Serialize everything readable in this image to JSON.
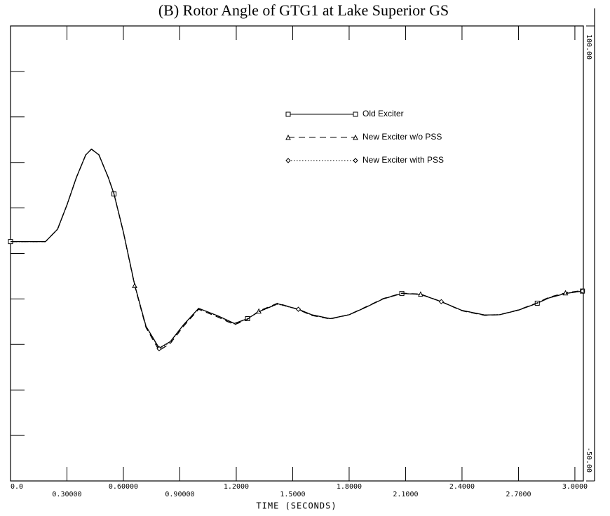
{
  "chart_data": {
    "type": "line",
    "title": "(B) Rotor Angle of GTG1 at Lake Superior GS",
    "xlabel": "TIME (SECONDS)",
    "xlim": [
      0,
      3.045
    ],
    "xticks": [
      {
        "value": 0,
        "label": "0.0"
      },
      {
        "value": 0.3,
        "label": "0.30000"
      },
      {
        "value": 0.6,
        "label": "0.60000"
      },
      {
        "value": 0.9,
        "label": "0.90000"
      },
      {
        "value": 1.2,
        "label": "1.2000"
      },
      {
        "value": 1.5,
        "label": "1.5000"
      },
      {
        "value": 1.8,
        "label": "1.8000"
      },
      {
        "value": 2.1,
        "label": "2.1000"
      },
      {
        "value": 2.4,
        "label": "2.4000"
      },
      {
        "value": 2.7,
        "label": "2.7000"
      },
      {
        "value": 3.0,
        "label": "3.0000"
      }
    ],
    "ylim": [
      -50,
      100
    ],
    "yticks": [
      {
        "value": -50,
        "label": "-50.00"
      },
      {
        "value": 100,
        "label": "100.00"
      }
    ],
    "minor_yticks": [
      -35,
      -20,
      -5,
      10,
      25,
      40,
      55,
      70,
      85
    ],
    "x": [
      0,
      0.1,
      0.186,
      0.25,
      0.3,
      0.35,
      0.4,
      0.43,
      0.47,
      0.52,
      0.55,
      0.6,
      0.66,
      0.72,
      0.79,
      0.85,
      0.92,
      1.0,
      1.1,
      1.19,
      1.26,
      1.32,
      1.42,
      1.53,
      1.6,
      1.7,
      1.8,
      1.88,
      1.98,
      2.08,
      2.18,
      2.29,
      2.4,
      2.52,
      2.6,
      2.7,
      2.8,
      2.86,
      2.95,
      3.04
    ],
    "series": [
      {
        "name": "Old Exciter",
        "color": "#000000",
        "style": "solid",
        "marker": "square",
        "values": [
          28.9,
          28.9,
          28.9,
          33,
          41,
          50,
          57.5,
          59.4,
          57.5,
          50,
          44.6,
          32,
          14.6,
          1,
          -6.2,
          -4,
          1.5,
          6.9,
          4.5,
          1.9,
          3.5,
          5.8,
          8.4,
          6.6,
          4.8,
          3.5,
          4.8,
          7,
          10,
          11.8,
          11.5,
          9.1,
          6.2,
          4.7,
          4.8,
          6.3,
          8.6,
          10.3,
          11.8,
          12.6
        ]
      },
      {
        "name": "New Exciter w/o PSS",
        "color": "#000000",
        "style": "dashed",
        "marker": "triangle",
        "values": [
          28.9,
          28.9,
          28.9,
          33,
          41,
          50,
          57.5,
          59.4,
          57.5,
          50,
          44.6,
          32,
          14.4,
          0.6,
          -7,
          -4.6,
          1,
          6.6,
          4.1,
          1.5,
          3.3,
          6,
          8.6,
          6.5,
          4.6,
          3.4,
          4.8,
          7.1,
          10.1,
          11.9,
          11.6,
          9.1,
          6.1,
          4.6,
          4.8,
          6.4,
          8.7,
          10.5,
          12,
          12.8
        ]
      },
      {
        "name": "New Exciter with PSS",
        "color": "#000000",
        "style": "dotted",
        "marker": "diamond",
        "values": [
          28.9,
          28.9,
          28.9,
          33,
          41,
          50,
          57.5,
          59.4,
          57.5,
          50,
          44.6,
          32,
          14.6,
          1,
          -6.4,
          -4.2,
          1.4,
          6.9,
          4.4,
          1.8,
          3.5,
          5.8,
          8.3,
          6.6,
          4.8,
          3.5,
          4.8,
          7,
          10,
          11.8,
          11.5,
          9.1,
          6.2,
          4.7,
          4.8,
          6.3,
          8.6,
          10.3,
          11.8,
          12.6
        ]
      }
    ]
  }
}
